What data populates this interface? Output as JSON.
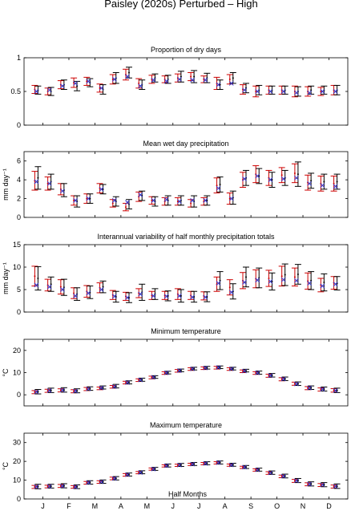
{
  "figure_title": "Paisley (2020s) Perturbed – High",
  "chart_data": [
    {
      "type": "errorbar",
      "title": "Proportion of dry days",
      "ylabel": "",
      "ylim": [
        0,
        1
      ],
      "yticks": [
        "0",
        "0.5",
        "1"
      ],
      "yticks_values": [
        0,
        0.5,
        1
      ],
      "series": [
        {
          "name": "",
          "color": "#cc0000",
          "values": [
            0.53,
            0.5,
            0.6,
            0.63,
            0.65,
            0.55,
            0.68,
            0.75,
            0.62,
            0.68,
            0.68,
            0.7,
            0.72,
            0.68,
            0.62,
            0.68,
            0.53,
            0.5,
            0.52,
            0.52,
            0.5,
            0.5,
            0.5,
            0.52
          ],
          "err": [
            0.06,
            0.05,
            0.06,
            0.07,
            0.06,
            0.06,
            0.07,
            0.08,
            0.07,
            0.06,
            0.05,
            0.06,
            0.06,
            0.05,
            0.09,
            0.07,
            0.07,
            0.08,
            0.06,
            0.06,
            0.08,
            0.07,
            0.06,
            0.07
          ]
        },
        {
          "name": "",
          "color": "#000000",
          "values": [
            0.52,
            0.5,
            0.6,
            0.58,
            0.63,
            0.53,
            0.7,
            0.78,
            0.6,
            0.7,
            0.68,
            0.72,
            0.72,
            0.7,
            0.6,
            0.7,
            0.55,
            0.52,
            0.52,
            0.52,
            0.5,
            0.52,
            0.52,
            0.52
          ],
          "err": [
            0.06,
            0.06,
            0.07,
            0.07,
            0.06,
            0.07,
            0.08,
            0.08,
            0.07,
            0.06,
            0.06,
            0.08,
            0.09,
            0.07,
            0.07,
            0.08,
            0.07,
            0.07,
            0.06,
            0.06,
            0.07,
            0.06,
            0.06,
            0.07
          ]
        },
        {
          "name": "",
          "color": "#3333cc",
          "values": [
            0.5,
            0.52,
            0.58,
            0.62,
            0.65,
            0.55,
            0.68,
            0.72,
            0.58,
            0.67,
            0.65,
            0.68,
            0.67,
            0.67,
            0.6,
            0.62,
            0.52,
            0.5,
            0.5,
            0.5,
            0.48,
            0.48,
            0.5,
            0.5
          ],
          "err": []
        }
      ]
    },
    {
      "type": "errorbar",
      "title": "Mean wet day precipitation",
      "ylabel": "mm day⁻¹",
      "ylim": [
        0,
        7
      ],
      "yticks": [
        "0",
        "2",
        "4",
        "6"
      ],
      "yticks_values": [
        0,
        2,
        4,
        6
      ],
      "series": [
        {
          "name": "",
          "color": "#cc0000",
          "values": [
            3.9,
            3.6,
            3.0,
            1.8,
            2.0,
            3.1,
            1.5,
            1.1,
            2.2,
            1.8,
            1.7,
            1.7,
            1.5,
            1.7,
            3.4,
            2.0,
            4.0,
            4.6,
            4.2,
            4.5,
            4.7,
            3.7,
            3.6,
            3.6
          ],
          "err": [
            1.0,
            0.7,
            0.6,
            0.5,
            0.5,
            0.5,
            0.4,
            0.4,
            0.5,
            0.4,
            0.4,
            0.4,
            0.4,
            0.4,
            0.8,
            0.6,
            0.8,
            0.9,
            0.8,
            0.8,
            1.0,
            0.8,
            0.8,
            0.8
          ]
        },
        {
          "name": "",
          "color": "#000000",
          "values": [
            4.2,
            3.8,
            2.9,
            1.7,
            2.0,
            3.0,
            1.7,
            1.4,
            2.3,
            1.7,
            1.8,
            1.8,
            1.7,
            1.8,
            3.5,
            2.1,
            4.2,
            4.4,
            4.0,
            4.2,
            4.6,
            3.9,
            3.8,
            3.8
          ],
          "err": [
            1.2,
            0.8,
            0.7,
            0.6,
            0.5,
            0.5,
            0.5,
            0.5,
            0.5,
            0.5,
            0.5,
            0.5,
            0.6,
            0.5,
            0.8,
            0.7,
            0.8,
            0.8,
            0.8,
            0.8,
            1.3,
            0.8,
            0.8,
            0.8
          ]
        },
        {
          "name": "",
          "color": "#3333cc",
          "values": [
            3.8,
            3.6,
            2.8,
            1.8,
            2.0,
            3.0,
            1.8,
            1.6,
            2.4,
            1.8,
            1.9,
            1.7,
            1.8,
            1.8,
            3.1,
            2.0,
            4.1,
            4.4,
            4.0,
            4.1,
            4.2,
            3.6,
            3.4,
            3.3
          ],
          "err": []
        }
      ]
    },
    {
      "type": "errorbar",
      "title": "Interannual variability of half monthly precipitation totals",
      "ylabel": "mm day⁻¹",
      "ylim": [
        0,
        15
      ],
      "yticks": [
        "0",
        "5",
        "10",
        "15"
      ],
      "yticks_values": [
        0,
        5,
        10,
        15
      ],
      "series": [
        {
          "name": "",
          "color": "#cc0000",
          "values": [
            8.0,
            6.0,
            5.6,
            4.2,
            4.6,
            5.4,
            3.8,
            3.5,
            4.2,
            3.7,
            3.7,
            4.0,
            3.7,
            3.6,
            6.2,
            5.5,
            7.0,
            7.4,
            7.5,
            8.0,
            7.8,
            6.9,
            6.0,
            6.5
          ],
          "err": [
            2.2,
            1.3,
            1.6,
            1.2,
            1.3,
            1.1,
            1.0,
            0.9,
            1.0,
            0.9,
            0.9,
            1.2,
            0.9,
            0.9,
            1.6,
            1.7,
            1.8,
            2.0,
            1.8,
            2.2,
            2.0,
            1.8,
            1.5,
            1.4
          ]
        },
        {
          "name": "",
          "color": "#000000",
          "values": [
            7.5,
            6.2,
            5.5,
            4.0,
            4.4,
            5.6,
            3.4,
            3.2,
            4.4,
            4.0,
            3.6,
            3.6,
            3.4,
            3.4,
            7.0,
            4.6,
            7.8,
            7.6,
            6.8,
            8.3,
            8.4,
            7.0,
            6.6,
            6.4
          ],
          "err": [
            2.6,
            1.6,
            1.8,
            1.4,
            1.4,
            1.3,
            1.2,
            1.1,
            1.8,
            1.2,
            1.1,
            1.4,
            1.2,
            1.1,
            2.0,
            1.7,
            2.2,
            2.2,
            1.9,
            2.4,
            2.2,
            2.0,
            1.9,
            1.5
          ]
        },
        {
          "name": "",
          "color": "#3333cc",
          "values": [
            6.0,
            5.6,
            5.0,
            3.6,
            4.2,
            5.0,
            3.5,
            3.2,
            4.0,
            3.6,
            3.5,
            3.6,
            3.3,
            3.3,
            6.4,
            4.4,
            6.6,
            7.1,
            6.8,
            7.2,
            7.0,
            6.4,
            5.8,
            6.2
          ],
          "err": []
        }
      ]
    },
    {
      "type": "errorbar",
      "title": "Minimum temperature",
      "ylabel": "°C",
      "ylim": [
        -5,
        25
      ],
      "yticks": [
        "0",
        "10",
        "20"
      ],
      "yticks_values": [
        0,
        10,
        20
      ],
      "series": [
        {
          "name": "",
          "color": "#cc0000",
          "values": [
            1.2,
            1.8,
            2.0,
            1.6,
            2.6,
            2.9,
            3.6,
            5.5,
            6.6,
            7.8,
            9.8,
            10.8,
            11.6,
            12.0,
            12.2,
            11.6,
            10.6,
            9.8,
            8.6,
            7.0,
            5.0,
            3.0,
            2.4,
            2.0
          ],
          "err": [
            0.7,
            0.7,
            0.7,
            0.7,
            0.7,
            0.6,
            0.6,
            0.6,
            0.6,
            0.6,
            0.6,
            0.6,
            0.6,
            0.6,
            0.6,
            0.6,
            0.6,
            0.6,
            0.7,
            0.7,
            0.7,
            0.7,
            0.7,
            0.8
          ]
        },
        {
          "name": "",
          "color": "#000000",
          "values": [
            1.4,
            2.0,
            2.2,
            1.8,
            2.8,
            3.3,
            3.9,
            5.6,
            6.8,
            8.0,
            10.0,
            11.0,
            11.8,
            12.2,
            12.4,
            11.8,
            10.9,
            10.0,
            8.8,
            7.2,
            5.0,
            3.2,
            2.6,
            2.0
          ],
          "err": [
            1.0,
            1.0,
            1.0,
            0.9,
            0.8,
            0.7,
            0.8,
            0.7,
            0.7,
            0.6,
            0.6,
            0.6,
            0.6,
            0.6,
            0.6,
            0.6,
            0.6,
            0.7,
            0.8,
            0.8,
            0.8,
            0.8,
            0.9,
            1.0
          ]
        },
        {
          "name": "",
          "color": "#3333cc",
          "values": [
            1.3,
            1.9,
            2.1,
            1.7,
            2.7,
            3.1,
            3.7,
            5.5,
            6.7,
            7.9,
            9.9,
            10.9,
            11.7,
            12.1,
            12.3,
            11.7,
            10.7,
            9.9,
            8.7,
            7.1,
            4.9,
            3.1,
            2.5,
            1.9
          ],
          "err": []
        }
      ]
    },
    {
      "type": "errorbar",
      "title": "Maximum temperature",
      "ylabel": "°C",
      "ylim": [
        0,
        35
      ],
      "yticks": [
        "0",
        "10",
        "20",
        "30"
      ],
      "yticks_values": [
        0,
        10,
        20,
        30
      ],
      "series": [
        {
          "name": "",
          "color": "#cc0000",
          "values": [
            6.4,
            6.6,
            6.9,
            6.4,
            8.6,
            9.0,
            10.9,
            12.8,
            14.0,
            15.9,
            17.6,
            17.9,
            18.4,
            18.8,
            19.2,
            18.0,
            16.8,
            15.4,
            13.8,
            12.0,
            9.6,
            7.8,
            7.4,
            6.6
          ],
          "err": [
            0.8,
            0.7,
            0.8,
            0.7,
            0.7,
            0.7,
            0.7,
            0.7,
            0.6,
            0.6,
            0.6,
            0.6,
            0.6,
            0.6,
            0.6,
            0.6,
            0.6,
            0.6,
            0.7,
            0.7,
            0.8,
            0.8,
            0.8,
            0.8
          ]
        },
        {
          "name": "",
          "color": "#000000",
          "values": [
            6.6,
            6.8,
            7.0,
            6.5,
            8.8,
            9.2,
            11.0,
            13.0,
            14.2,
            16.0,
            17.8,
            18.1,
            18.6,
            19.0,
            19.4,
            18.2,
            17.0,
            15.6,
            14.0,
            12.2,
            9.8,
            8.0,
            7.6,
            6.8
          ],
          "err": [
            1.2,
            1.0,
            1.1,
            1.0,
            0.9,
            0.9,
            0.9,
            0.8,
            0.8,
            0.8,
            0.8,
            0.8,
            0.8,
            0.8,
            0.8,
            0.8,
            0.8,
            0.8,
            0.9,
            1.0,
            1.1,
            1.1,
            1.1,
            1.2
          ]
        },
        {
          "name": "",
          "color": "#3333cc",
          "values": [
            6.5,
            6.7,
            6.9,
            6.4,
            8.7,
            9.1,
            10.9,
            12.9,
            14.1,
            15.9,
            17.7,
            18.0,
            18.5,
            18.9,
            19.3,
            18.1,
            16.9,
            15.5,
            13.9,
            12.1,
            9.7,
            7.9,
            7.5,
            6.7
          ],
          "err": []
        }
      ]
    }
  ],
  "x_axis": {
    "label": "Half Months",
    "tick_labels": [
      "J",
      "F",
      "M",
      "A",
      "M",
      "J",
      "J",
      "A",
      "S",
      "O",
      "N",
      "D"
    ]
  }
}
